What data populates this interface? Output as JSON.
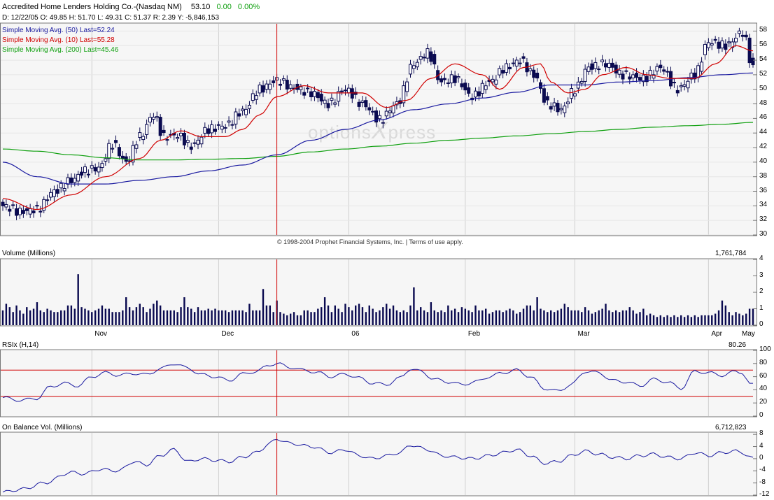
{
  "header": {
    "title": "Accredited Home Lenders Holding Co.-(Nasdaq NM)",
    "last": "53.10",
    "change": "0.00",
    "change_pct": "0.00%",
    "ohlc_line": "D: 12/22/05  O: 49.85  H: 51.70  L: 49.31  C: 51.37  R: 2.39  Y: -5,846,153"
  },
  "legend": {
    "sma50": "Simple Moving Avg. (50) Last=52.24",
    "sma10": "Simple Moving Avg. (10) Last=55.28",
    "sma200": "Simple Moving Avg. (200) Last=45.46"
  },
  "colors": {
    "sma50": "#1a1aa0",
    "sma10": "#d00000",
    "sma200": "#10a010",
    "candle": "#0a0a50",
    "ref_line": "#d00000",
    "rsi_line": "#1a1aa0",
    "obv_line": "#1a1aa0"
  },
  "watermark": {
    "part1": "options",
    "part2": "X",
    "part3": "press"
  },
  "copyright": "© 1998-2004 Prophet Financial Systems, Inc. | Terms of use apply.",
  "volume": {
    "title": "Volume (Millions)",
    "last": "1,761,784"
  },
  "rsi": {
    "title": "RSIx (H,14)",
    "last": "80.26"
  },
  "obv": {
    "title": "On Balance Vol. (Millions)",
    "last": "6,712,823"
  },
  "x_labels": [
    "Nov",
    "Dec",
    "06",
    "Feb",
    "Mar",
    "Apr",
    "May"
  ],
  "chart_data": [
    {
      "type": "candlestick",
      "title": "Accredited Home Lenders Holding Co.-(Nasdaq NM)",
      "y_ticks": [
        "30",
        "32",
        "34",
        "36",
        "38",
        "40",
        "42",
        "44",
        "46",
        "48",
        "50",
        "52",
        "54",
        "56",
        "58"
      ],
      "ylim": [
        30,
        59
      ],
      "highlight_date": "12/22/05",
      "highlight_index": 80,
      "close_knots": [
        [
          0,
          34
        ],
        [
          5,
          33.2
        ],
        [
          10,
          33.5
        ],
        [
          15,
          36
        ],
        [
          20,
          37.5
        ],
        [
          24,
          38.8
        ],
        [
          28,
          39.2
        ],
        [
          32,
          42.5
        ],
        [
          36,
          40
        ],
        [
          40,
          43.5
        ],
        [
          44,
          46.5
        ],
        [
          47,
          43.5
        ],
        [
          51,
          43.7
        ],
        [
          55,
          42.2
        ],
        [
          60,
          44.5
        ],
        [
          65,
          45
        ],
        [
          70,
          47
        ],
        [
          75,
          50
        ],
        [
          80,
          51.2
        ],
        [
          85,
          50.2
        ],
        [
          90,
          49.5
        ],
        [
          95,
          48
        ],
        [
          100,
          50
        ],
        [
          105,
          48
        ],
        [
          110,
          45.8
        ],
        [
          115,
          48
        ],
        [
          120,
          53.5
        ],
        [
          124,
          55
        ],
        [
          128,
          51
        ],
        [
          132,
          51.5
        ],
        [
          137,
          49
        ],
        [
          142,
          51
        ],
        [
          147,
          53
        ],
        [
          151,
          54
        ],
        [
          155,
          52
        ],
        [
          159,
          48
        ],
        [
          163,
          47.2
        ],
        [
          167,
          50
        ],
        [
          171,
          53
        ],
        [
          176,
          53.5
        ],
        [
          181,
          52
        ],
        [
          187,
          51.5
        ],
        [
          192,
          53
        ],
        [
          197,
          50
        ],
        [
          202,
          52
        ],
        [
          206,
          56.5
        ],
        [
          211,
          56
        ],
        [
          216,
          57.8
        ],
        [
          219,
          53
        ]
      ],
      "sma50_knots": [
        [
          0,
          40
        ],
        [
          10,
          38
        ],
        [
          20,
          37
        ],
        [
          30,
          37
        ],
        [
          40,
          37.5
        ],
        [
          50,
          38
        ],
        [
          60,
          38.8
        ],
        [
          70,
          39.6
        ],
        [
          80,
          41
        ],
        [
          90,
          43
        ],
        [
          100,
          44.5
        ],
        [
          110,
          45.8
        ],
        [
          120,
          47.2
        ],
        [
          130,
          48
        ],
        [
          140,
          48.8
        ],
        [
          150,
          49.6
        ],
        [
          160,
          50.6
        ],
        [
          170,
          50.6
        ],
        [
          180,
          51
        ],
        [
          190,
          51.2
        ],
        [
          200,
          51.6
        ],
        [
          210,
          52
        ],
        [
          219,
          52.24
        ]
      ],
      "sma10_knots": [
        [
          0,
          35
        ],
        [
          10,
          33.5
        ],
        [
          20,
          35.5
        ],
        [
          30,
          38
        ],
        [
          40,
          40.5
        ],
        [
          46,
          43
        ],
        [
          52,
          44.3
        ],
        [
          58,
          43.5
        ],
        [
          65,
          43.5
        ],
        [
          70,
          44.5
        ],
        [
          75,
          46.5
        ],
        [
          80,
          49
        ],
        [
          88,
          50.5
        ],
        [
          95,
          49.5
        ],
        [
          105,
          49.5
        ],
        [
          112,
          47.5
        ],
        [
          118,
          48.5
        ],
        [
          125,
          51.5
        ],
        [
          132,
          53.5
        ],
        [
          140,
          52
        ],
        [
          145,
          50
        ],
        [
          152,
          53
        ],
        [
          157,
          53.5
        ],
        [
          160,
          51
        ],
        [
          165,
          49.5
        ],
        [
          170,
          50
        ],
        [
          175,
          52
        ],
        [
          182,
          53
        ],
        [
          188,
          52
        ],
        [
          195,
          51.5
        ],
        [
          202,
          51.5
        ],
        [
          208,
          53.5
        ],
        [
          214,
          56
        ],
        [
          219,
          55.28
        ]
      ],
      "sma200_knots": [
        [
          0,
          41.8
        ],
        [
          10,
          41.5
        ],
        [
          20,
          41
        ],
        [
          30,
          40.6
        ],
        [
          40,
          40.3
        ],
        [
          50,
          40.3
        ],
        [
          60,
          40.4
        ],
        [
          70,
          40.5
        ],
        [
          80,
          40.8
        ],
        [
          90,
          41.4
        ],
        [
          100,
          41.8
        ],
        [
          110,
          42.2
        ],
        [
          120,
          42.6
        ],
        [
          130,
          43
        ],
        [
          140,
          43.3
        ],
        [
          150,
          43.6
        ],
        [
          160,
          43.9
        ],
        [
          170,
          44.2
        ],
        [
          180,
          44.5
        ],
        [
          190,
          44.8
        ],
        [
          200,
          45
        ],
        [
          210,
          45.2
        ],
        [
          219,
          45.46
        ]
      ]
    },
    {
      "type": "bar",
      "title": "Volume (Millions)",
      "y_ticks": [
        "0",
        "1",
        "2",
        "3",
        "4"
      ],
      "ylim": [
        0,
        4
      ],
      "values": [
        0.9,
        1.3,
        1.1,
        0.8,
        1.2,
        0.9,
        0.7,
        1.1,
        0.9,
        1.0,
        1.4,
        0.9,
        0.8,
        1.0,
        0.9,
        0.8,
        0.8,
        0.9,
        0.9,
        1.2,
        1.2,
        1.0,
        3.1,
        1.1,
        1.0,
        0.9,
        0.8,
        0.9,
        1.0,
        1.2,
        1.0,
        1.0,
        0.8,
        0.8,
        0.8,
        0.9,
        1.7,
        1.1,
        0.9,
        1.1,
        1.3,
        1.1,
        0.8,
        1.0,
        1.3,
        1.5,
        1.2,
        0.9,
        0.9,
        0.9,
        0.9,
        0.8,
        1.1,
        1.7,
        1.1,
        1.0,
        0.8,
        1.1,
        0.9,
        0.9,
        1.0,
        0.9,
        1.0,
        0.9,
        0.9,
        0.9,
        0.8,
        0.9,
        0.9,
        0.9,
        0.9,
        0.8,
        1.3,
        0.9,
        0.9,
        0.9,
        2.2,
        1.2,
        1.2,
        0.8,
        1.5,
        0.8,
        0.7,
        0.6,
        0.7,
        0.8,
        0.6,
        0.6,
        0.9,
        0.9,
        0.8,
        0.8,
        1.0,
        1.1,
        1.7,
        1.2,
        0.8,
        1.2,
        1.0,
        0.8,
        1.3,
        1.1,
        0.9,
        1.2,
        1.3,
        1.1,
        0.8,
        1.2,
        1.0,
        0.8,
        0.9,
        1.1,
        1.3,
        1.0,
        1.2,
        0.9,
        0.8,
        0.9,
        0.8,
        1.2,
        2.3,
        0.9,
        1.1,
        0.9,
        0.8,
        1.4,
        0.9,
        0.8,
        0.9,
        0.8,
        1.2,
        0.9,
        1.0,
        0.8,
        1.1,
        1.0,
        0.9,
        0.8,
        1.2,
        0.9,
        0.9,
        1.0,
        0.7,
        0.8,
        0.9,
        0.9,
        0.8,
        0.9,
        1.0,
        0.9,
        0.7,
        0.8,
        1.0,
        1.2,
        1.2,
        0.9,
        1.7,
        1.0,
        0.9,
        0.8,
        0.9,
        0.8,
        0.9,
        1.0,
        1.3,
        1.1,
        0.9,
        0.9,
        0.9,
        0.8,
        1.1,
        0.9,
        0.7,
        0.8,
        0.9,
        1.0,
        1.3,
        0.9,
        0.8,
        0.9,
        0.8,
        0.9,
        0.9,
        1.1,
        0.9,
        0.7,
        0.8,
        1.0,
        0.6,
        0.7,
        0.6,
        0.5,
        0.6,
        0.5,
        0.6,
        0.5,
        0.6,
        0.5,
        0.6,
        0.5,
        0.6,
        0.5,
        0.6,
        0.5,
        0.6,
        0.6,
        0.6,
        0.6,
        0.7,
        0.9,
        1.5,
        1.2,
        0.8,
        0.6,
        0.8,
        0.7,
        0.6,
        0.7,
        1.0,
        1.0,
        0.9,
        1.1,
        1.2,
        0.9,
        0.8
      ]
    },
    {
      "type": "line",
      "title": "RSIx (H,14)",
      "y_ticks": [
        "0",
        "20",
        "40",
        "60",
        "80",
        "100"
      ],
      "ylim": [
        0,
        100
      ],
      "reference_lines": [
        30,
        70
      ],
      "knots": [
        [
          0,
          28
        ],
        [
          5,
          24
        ],
        [
          10,
          27
        ],
        [
          14,
          45
        ],
        [
          18,
          50
        ],
        [
          22,
          46
        ],
        [
          26,
          60
        ],
        [
          30,
          66
        ],
        [
          34,
          62
        ],
        [
          38,
          65
        ],
        [
          42,
          63
        ],
        [
          46,
          72
        ],
        [
          50,
          80
        ],
        [
          54,
          73
        ],
        [
          58,
          63
        ],
        [
          62,
          60
        ],
        [
          66,
          54
        ],
        [
          70,
          64
        ],
        [
          74,
          68
        ],
        [
          78,
          78
        ],
        [
          80,
          80
        ],
        [
          84,
          74
        ],
        [
          88,
          70
        ],
        [
          92,
          66
        ],
        [
          96,
          60
        ],
        [
          100,
          64
        ],
        [
          104,
          58
        ],
        [
          108,
          50
        ],
        [
          112,
          48
        ],
        [
          116,
          58
        ],
        [
          119,
          72
        ],
        [
          122,
          68
        ],
        [
          126,
          56
        ],
        [
          130,
          52
        ],
        [
          134,
          48
        ],
        [
          138,
          52
        ],
        [
          142,
          60
        ],
        [
          146,
          66
        ],
        [
          150,
          70
        ],
        [
          154,
          60
        ],
        [
          158,
          42
        ],
        [
          162,
          38
        ],
        [
          166,
          48
        ],
        [
          170,
          68
        ],
        [
          174,
          66
        ],
        [
          178,
          54
        ],
        [
          182,
          52
        ],
        [
          186,
          46
        ],
        [
          190,
          56
        ],
        [
          194,
          52
        ],
        [
          198,
          42
        ],
        [
          202,
          68
        ],
        [
          206,
          66
        ],
        [
          210,
          62
        ],
        [
          214,
          68
        ],
        [
          216,
          66
        ],
        [
          218,
          48
        ],
        [
          219,
          48
        ]
      ]
    },
    {
      "type": "line",
      "title": "On Balance Vol. (Millions)",
      "y_ticks": [
        "-12",
        "-8",
        "-4",
        "0",
        "4",
        "8"
      ],
      "ylim": [
        -12,
        8.5
      ],
      "knots": [
        [
          0,
          -11
        ],
        [
          6,
          -10
        ],
        [
          12,
          -8
        ],
        [
          20,
          -4.5
        ],
        [
          24,
          -5
        ],
        [
          28,
          -3.5
        ],
        [
          34,
          -4
        ],
        [
          38,
          -1
        ],
        [
          42,
          -2
        ],
        [
          46,
          1
        ],
        [
          50,
          3
        ],
        [
          54,
          -1
        ],
        [
          58,
          0
        ],
        [
          62,
          -0.5
        ],
        [
          66,
          -1
        ],
        [
          70,
          0.5
        ],
        [
          74,
          2
        ],
        [
          78,
          5
        ],
        [
          80,
          6.5
        ],
        [
          84,
          5
        ],
        [
          90,
          4
        ],
        [
          96,
          2
        ],
        [
          100,
          3
        ],
        [
          104,
          1
        ],
        [
          108,
          0
        ],
        [
          112,
          1
        ],
        [
          116,
          2
        ],
        [
          119,
          4.5
        ],
        [
          124,
          3
        ],
        [
          128,
          1
        ],
        [
          132,
          0.5
        ],
        [
          137,
          0
        ],
        [
          142,
          1
        ],
        [
          146,
          2
        ],
        [
          150,
          3
        ],
        [
          154,
          1
        ],
        [
          158,
          -1.5
        ],
        [
          162,
          -1
        ],
        [
          166,
          1
        ],
        [
          170,
          2.5
        ],
        [
          174,
          1.5
        ],
        [
          178,
          0.5
        ],
        [
          182,
          0
        ],
        [
          186,
          1
        ],
        [
          190,
          1.5
        ],
        [
          194,
          0.5
        ],
        [
          198,
          0
        ],
        [
          202,
          2
        ],
        [
          206,
          1
        ],
        [
          210,
          2
        ],
        [
          214,
          2.5
        ],
        [
          216,
          2
        ],
        [
          218,
          0.5
        ],
        [
          219,
          0
        ]
      ]
    }
  ]
}
